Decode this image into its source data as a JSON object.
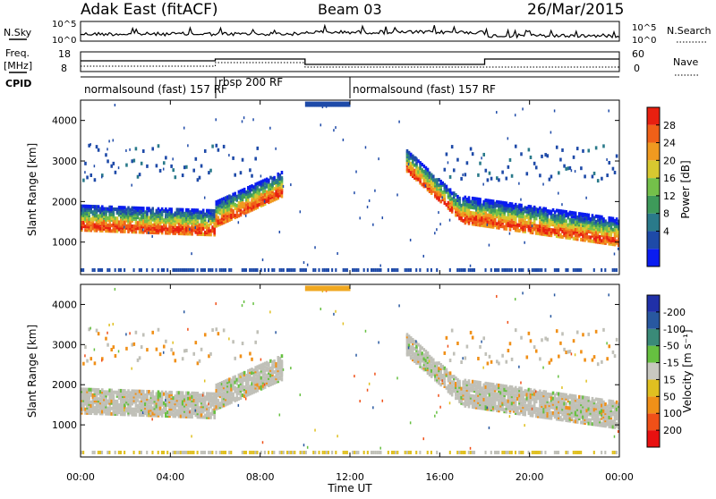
{
  "header": {
    "station": "Adak East (fitACF)",
    "beam": "Beam 03",
    "date": "26/Mar/2015"
  },
  "labels": {
    "nsky": "N.Sky",
    "nsearch": "N.Search",
    "freq_top": "Freq.",
    "freq_unit": "[MHz]",
    "nave": "Nave",
    "cpid": "CPID",
    "y_left_ticks_top": [
      "10^5",
      "10^0"
    ],
    "y_right_ticks_top": [
      "10^5",
      "10^0"
    ],
    "freq_ticks": [
      "18",
      "8"
    ],
    "nave_ticks": [
      "60",
      "0"
    ]
  },
  "cpid_segments": [
    {
      "label": "normalsound (fast) 157 RF",
      "start_h": 0,
      "end_h": 6
    },
    {
      "label": "rbsp 200 RF",
      "start_h": 6,
      "end_h": 12
    },
    {
      "label": "normalsound (fast) 157 RF",
      "start_h": 12,
      "end_h": 24
    }
  ],
  "chart_data": [
    {
      "type": "heatmap",
      "name": "power",
      "ylabel": "Slant Range [km]",
      "yticks": [
        "1000",
        "2000",
        "3000",
        "4000"
      ],
      "ylim": [
        200,
        4500
      ],
      "xlim": [
        0,
        24
      ],
      "colorbar_label": "Power [dB]",
      "colorbar_ticks": [
        "4",
        "8",
        "12",
        "16",
        "20",
        "24",
        "28"
      ],
      "colorbar_colors": [
        "#0a1cf0",
        "#1e4aa8",
        "#2a7a8a",
        "#3e9a5a",
        "#74c04a",
        "#d8c830",
        "#f09a20",
        "#f06018",
        "#e82010"
      ]
    },
    {
      "type": "heatmap",
      "name": "velocity",
      "ylabel": "Slant Range [km]",
      "yticks": [
        "1000",
        "2000",
        "3000",
        "4000"
      ],
      "ylim": [
        200,
        4500
      ],
      "xlim": [
        0,
        24
      ],
      "xticks": [
        "00:00",
        "04:00",
        "08:00",
        "12:00",
        "16:00",
        "20:00",
        "00:00"
      ],
      "xlabel": "Time UT",
      "colorbar_label": "Velocity [m s⁻¹]",
      "colorbar_ticks": [
        "200",
        "100",
        "50",
        "15",
        "-15",
        "-50",
        "-100",
        "-200"
      ],
      "colorbar_colors": [
        "#2030a8",
        "#2858a0",
        "#3a8a78",
        "#66c040",
        "#c8c8c0",
        "#e0c020",
        "#f09018",
        "#f05018",
        "#e81010"
      ]
    }
  ]
}
